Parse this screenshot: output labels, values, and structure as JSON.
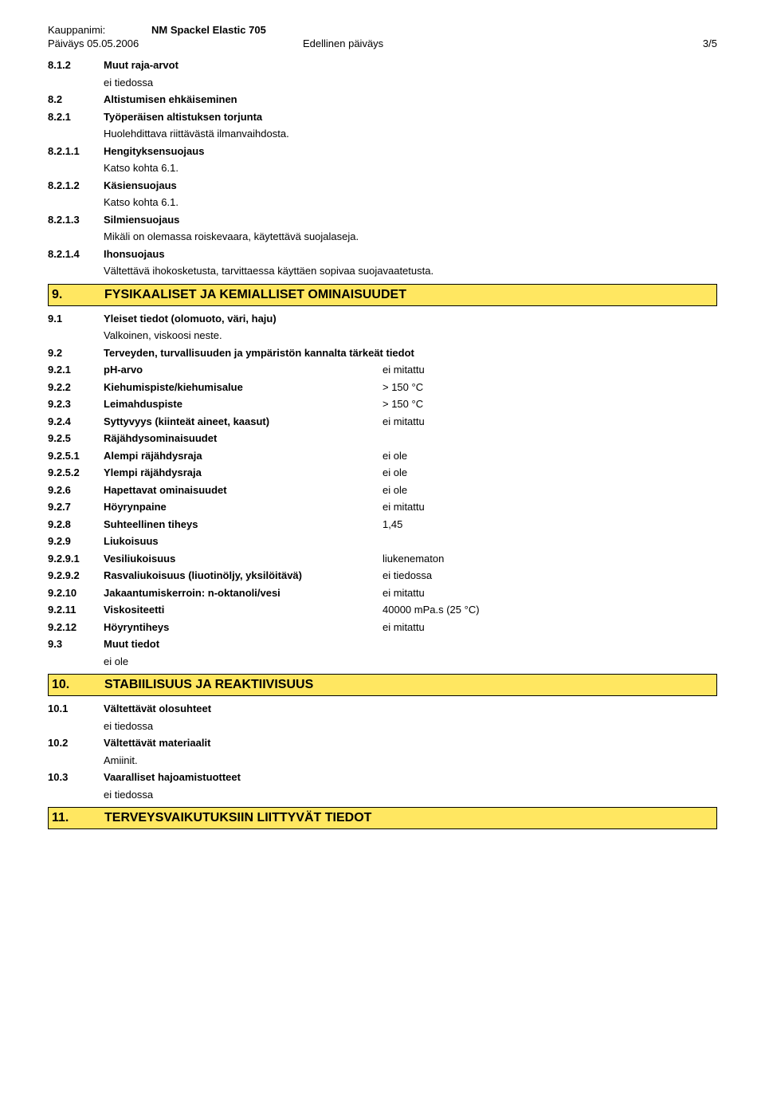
{
  "header": {
    "label_trade_name": "Kauppanimi:",
    "trade_name": "NM Spackel Elastic 705",
    "date_label": "Päiväys 05.05.2006",
    "prev_date_label": "Edellinen päiväys",
    "page_indicator": "3/5"
  },
  "items": [
    {
      "num": "8.1.2",
      "label": "Muut raja-arvot",
      "bold": true
    },
    {
      "indent": true,
      "label": "ei tiedossa"
    },
    {
      "num": "8.2",
      "label": "Altistumisen ehkäiseminen",
      "bold": true
    },
    {
      "num": "8.2.1",
      "label": "Työperäisen altistuksen torjunta",
      "bold": true
    },
    {
      "indent": true,
      "label": "Huolehdittava riittävästä ilmanvaihdosta."
    },
    {
      "num": "8.2.1.1",
      "label": "Hengityksensuojaus",
      "bold": true
    },
    {
      "indent": true,
      "label": "Katso kohta 6.1."
    },
    {
      "num": "8.2.1.2",
      "label": "Käsiensuojaus",
      "bold": true
    },
    {
      "indent": true,
      "label": "Katso kohta 6.1."
    },
    {
      "num": "8.2.1.3",
      "label": "Silmiensuojaus",
      "bold": true
    },
    {
      "indent": true,
      "label": "Mikäli on olemassa roiskevaara, käytettävä suojalaseja."
    },
    {
      "num": "8.2.1.4",
      "label": "Ihonsuojaus",
      "bold": true
    },
    {
      "indent": true,
      "label": "Vältettävä ihokosketusta, tarvittaessa käyttäen sopivaa suojavaatetusta."
    }
  ],
  "section9": {
    "num": "9.",
    "title": "FYSIKAALISET JA KEMIALLISET OMINAISUUDET"
  },
  "items9": [
    {
      "num": "9.1",
      "label": "Yleiset tiedot (olomuoto, väri, haju)",
      "bold": true
    },
    {
      "indent": true,
      "label": "Valkoinen, viskoosi neste."
    },
    {
      "num": "9.2",
      "label": "Terveyden, turvallisuuden ja ympäristön kannalta tärkeät tiedot",
      "bold": true
    },
    {
      "num": "9.2.1",
      "label": "pH-arvo",
      "value": "ei mitattu"
    },
    {
      "num": "9.2.2",
      "label": "Kiehumispiste/kiehumisalue",
      "value": "> 150 °C"
    },
    {
      "num": "9.2.3",
      "label": "Leimahduspiste",
      "value": "> 150 °C"
    },
    {
      "num": "9.2.4",
      "label": "Syttyvyys (kiinteät aineet, kaasut)",
      "value": "ei mitattu"
    },
    {
      "num": "9.2.5",
      "label": "Räjähdysominaisuudet",
      "bold": true
    },
    {
      "num": "9.2.5.1",
      "label": "Alempi räjähdysraja",
      "value": "ei ole"
    },
    {
      "num": "9.2.5.2",
      "label": "Ylempi räjähdysraja",
      "value": "ei ole"
    },
    {
      "num": "9.2.6",
      "label": "Hapettavat ominaisuudet",
      "value": "ei ole"
    },
    {
      "num": "9.2.7",
      "label": "Höyrynpaine",
      "value": "ei mitattu"
    },
    {
      "num": "9.2.8",
      "label": "Suhteellinen tiheys",
      "value": "1,45"
    },
    {
      "num": "9.2.9",
      "label": "Liukoisuus",
      "bold": true
    },
    {
      "num": "9.2.9.1",
      "label": "Vesiliukoisuus",
      "value": "liukenematon"
    },
    {
      "num": "9.2.9.2",
      "label": "Rasvaliukoisuus (liuotinöljy, yksilöitävä)",
      "value": "ei tiedossa"
    },
    {
      "num": "9.2.10",
      "label": "Jakaantumiskerroin: n-oktanoli/vesi",
      "value": "ei mitattu"
    },
    {
      "num": "9.2.11",
      "label": "Viskositeetti",
      "value": "40000 mPa.s (25 °C)"
    },
    {
      "num": "9.2.12",
      "label": "Höyryntiheys",
      "value": "ei mitattu"
    },
    {
      "num": "9.3",
      "label": "Muut tiedot",
      "bold": true
    },
    {
      "indent": true,
      "label": "ei ole"
    }
  ],
  "section10": {
    "num": "10.",
    "title": "STABIILISUUS JA REAKTIIVISUUS"
  },
  "items10": [
    {
      "num": "10.1",
      "label": "Vältettävät olosuhteet",
      "bold": true
    },
    {
      "indent": true,
      "label": "ei tiedossa"
    },
    {
      "num": "10.2",
      "label": "Vältettävät materiaalit",
      "bold": true
    },
    {
      "indent": true,
      "label": "Amiinit."
    },
    {
      "num": "10.3",
      "label": "Vaaralliset hajoamistuotteet",
      "bold": true
    },
    {
      "indent": true,
      "label": "ei tiedossa"
    }
  ],
  "section11": {
    "num": "11.",
    "title": "TERVEYSVAIKUTUKSIIN LIITTYVÄT TIEDOT"
  }
}
